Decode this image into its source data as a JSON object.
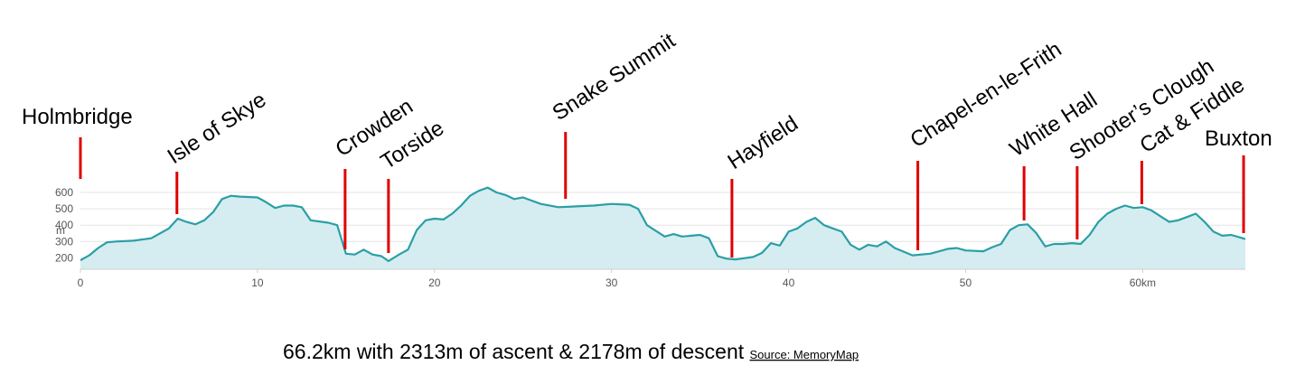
{
  "chart_data": {
    "type": "area",
    "y_label": "m",
    "caption": "66.2km with 2313m of ascent & 2178m of descent",
    "source": "Source: MemoryMap",
    "color": "#2a9fa6",
    "fill": "#d5edf0",
    "grid": true,
    "xlim": [
      0,
      65.8
    ],
    "ylim": [
      130,
      650
    ],
    "xticks": [
      0,
      10,
      20,
      30,
      40,
      50,
      {
        "value": 60,
        "label": "60km"
      }
    ],
    "yticks": [
      200,
      300,
      400,
      500,
      600
    ],
    "x": [
      0,
      0.5,
      1,
      1.5,
      2,
      3,
      4,
      5,
      5.5,
      6,
      6.5,
      7,
      7.5,
      8,
      8.5,
      9,
      10,
      10.5,
      11,
      11.5,
      12,
      12.5,
      13,
      14,
      14.5,
      15,
      15.5,
      16,
      16.5,
      17,
      17.4,
      18,
      18.5,
      19,
      19.5,
      20,
      20.5,
      21,
      21.5,
      22,
      22.5,
      23,
      23.5,
      24,
      24.5,
      25,
      26,
      27,
      28,
      29,
      30,
      31,
      31.5,
      32,
      33,
      33.5,
      34,
      35,
      35.5,
      36,
      36.5,
      37,
      38,
      38.5,
      39,
      39.5,
      40,
      40.5,
      41,
      41.5,
      42,
      42.5,
      43,
      43.5,
      44,
      44.5,
      45,
      45.5,
      46,
      47,
      48,
      49,
      49.5,
      50,
      51,
      51.5,
      52,
      52.5,
      53,
      53.5,
      54,
      54.5,
      55,
      55.5,
      56,
      56.5,
      57,
      57.5,
      58,
      58.5,
      59,
      59.5,
      60,
      60.5,
      61,
      61.5,
      62,
      62.5,
      63,
      63.5,
      64,
      64.5,
      65,
      65.5,
      65.8
    ],
    "values": [
      185,
      215,
      260,
      295,
      300,
      305,
      320,
      380,
      440,
      420,
      405,
      430,
      480,
      560,
      580,
      575,
      570,
      540,
      505,
      520,
      520,
      510,
      430,
      415,
      400,
      225,
      220,
      250,
      220,
      210,
      180,
      220,
      250,
      370,
      430,
      440,
      435,
      470,
      520,
      580,
      610,
      630,
      600,
      585,
      560,
      570,
      530,
      510,
      515,
      520,
      530,
      525,
      500,
      400,
      330,
      345,
      330,
      340,
      320,
      210,
      195,
      190,
      205,
      230,
      290,
      275,
      360,
      380,
      420,
      445,
      400,
      380,
      360,
      280,
      250,
      280,
      270,
      300,
      260,
      215,
      225,
      255,
      260,
      245,
      240,
      265,
      285,
      370,
      400,
      405,
      350,
      270,
      285,
      285,
      290,
      285,
      340,
      420,
      470,
      500,
      520,
      505,
      510,
      490,
      455,
      420,
      430,
      450,
      470,
      420,
      360,
      335,
      340,
      325,
      315
    ],
    "waypoints": [
      {
        "name": "Holmbridge",
        "km": 0
      },
      {
        "name": "Isle of Skye",
        "km": 5.45
      },
      {
        "name": "Crowden",
        "km": 14.95
      },
      {
        "name": "Torside",
        "km": 17.4
      },
      {
        "name": "Snake Summit",
        "km": 27.4
      },
      {
        "name": "Hayfield",
        "km": 36.8
      },
      {
        "name": "Chapel-en-le-Frith",
        "km": 47.3
      },
      {
        "name": "White Hall",
        "km": 53.3
      },
      {
        "name": "Shooter’s Clough",
        "km": 56.3
      },
      {
        "name": "Cat & Fiddle",
        "km": 59.95
      },
      {
        "name": "Buxton",
        "km": 65.7
      }
    ]
  }
}
